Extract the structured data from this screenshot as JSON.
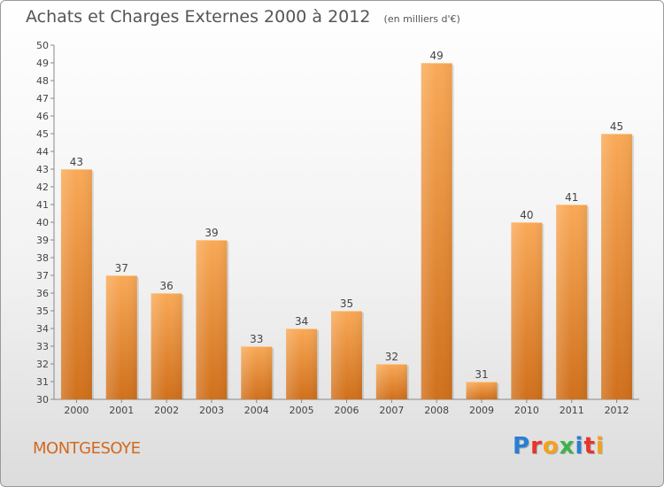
{
  "title": "Achats et Charges Externes 2000 à 2012",
  "subtitle": "(en milliers d'€)",
  "location": "MONTGESOYE",
  "logo": "Proxiti",
  "colors": {
    "bar_top": "#f9a957",
    "bar_bottom": "#d0701b",
    "text": "#555555",
    "location": "#d2691e"
  },
  "chart_data": {
    "type": "bar",
    "title": "Achats et Charges Externes 2000 à 2012",
    "subtitle": "(en milliers d'€)",
    "categories": [
      "2000",
      "2001",
      "2002",
      "2003",
      "2004",
      "2005",
      "2006",
      "2007",
      "2008",
      "2009",
      "2010",
      "2011",
      "2012"
    ],
    "values": [
      43,
      37,
      36,
      39,
      33,
      34,
      35,
      32,
      49,
      31,
      40,
      41,
      45
    ],
    "xlabel": "",
    "ylabel": "",
    "ylim": [
      30,
      50
    ],
    "yticks": [
      30,
      31,
      32,
      33,
      34,
      35,
      36,
      37,
      38,
      39,
      40,
      41,
      42,
      43,
      44,
      45,
      46,
      47,
      48,
      49,
      50
    ],
    "grid": false,
    "data_labels": true
  }
}
